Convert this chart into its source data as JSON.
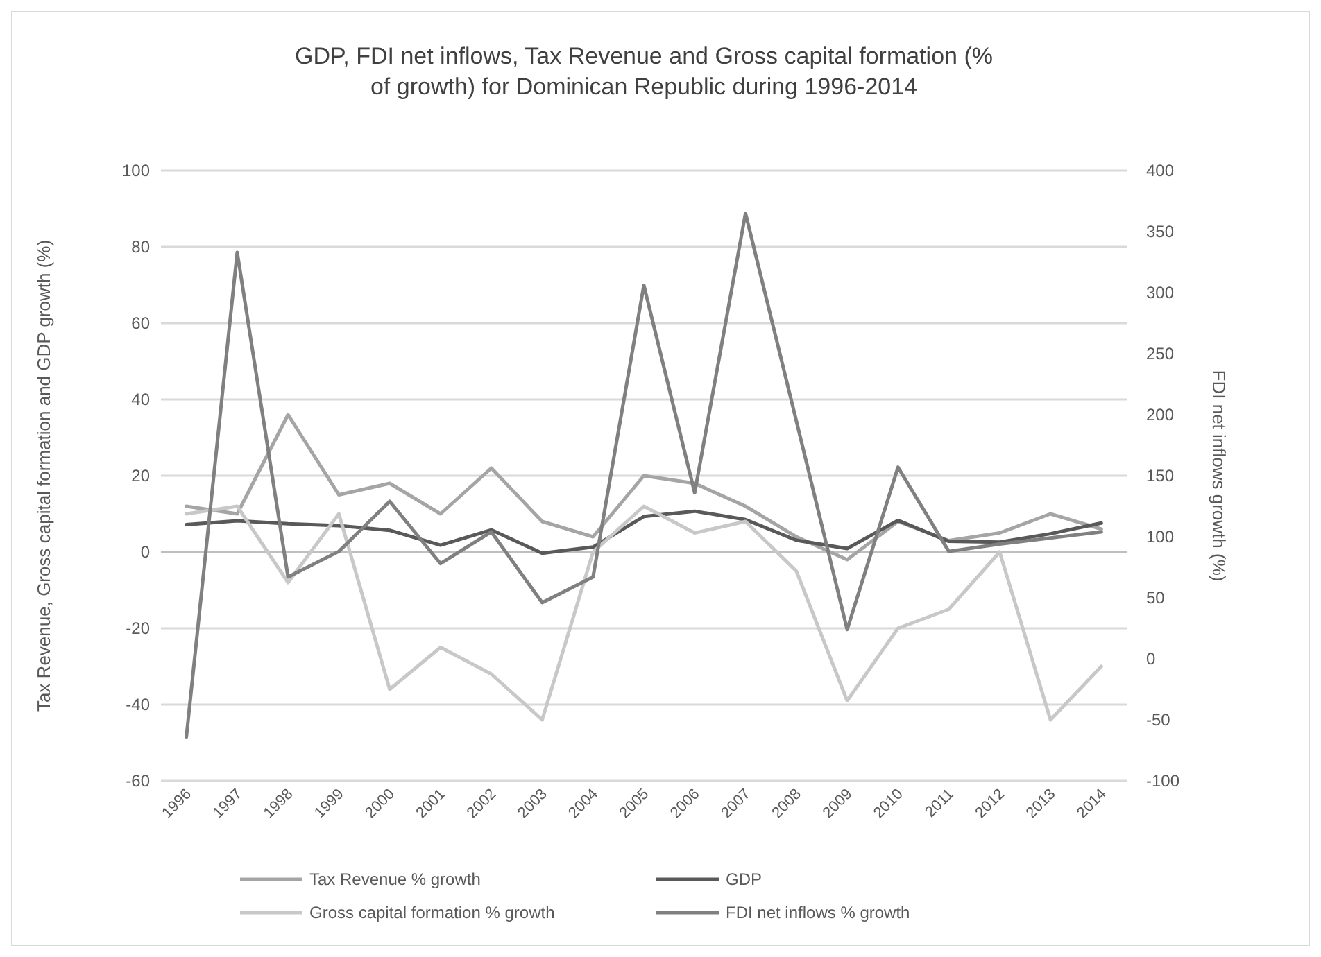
{
  "chart_data": {
    "type": "line",
    "title": "GDP, FDI net inflows, Tax Revenue and Gross capital formation (% of growth) for Dominican Republic during 1996-2014",
    "categories": [
      "1996",
      "1997",
      "1998",
      "1999",
      "2000",
      "2001",
      "2002",
      "2003",
      "2004",
      "2005",
      "2006",
      "2007",
      "2008",
      "2009",
      "2010",
      "2011",
      "2012",
      "2013",
      "2014"
    ],
    "series": [
      {
        "name": "Tax Revenue % growth",
        "color": "#a5a5a5",
        "values": [
          12,
          10,
          36,
          15,
          18,
          10,
          22,
          8,
          4,
          20,
          18,
          12,
          4,
          -2,
          8,
          3,
          5,
          10,
          6
        ]
      },
      {
        "name": "GDP",
        "color": "#595959",
        "values": [
          7.2,
          8.2,
          7.4,
          6.9,
          5.7,
          1.8,
          5.8,
          -0.3,
          1.3,
          9.3,
          10.7,
          8.5,
          3.1,
          0.9,
          8.3,
          2.8,
          2.6,
          4.8,
          7.6
        ]
      },
      {
        "name": "Gross capital formation % growth",
        "color": "#c8c8c8",
        "values": [
          10,
          12,
          -8,
          10,
          -36,
          -25,
          -32,
          -44,
          0,
          12,
          5,
          8,
          -5,
          -39,
          -20,
          -15,
          0,
          -44,
          -30
        ]
      },
      {
        "name": "FDI net inflows % growth",
        "color": "#808080",
        "axis": "y2",
        "values": [
          -64,
          333,
          67,
          88,
          129,
          78,
          104,
          46,
          67,
          306,
          136,
          365,
          195,
          24,
          157,
          88,
          94,
          99,
          104
        ]
      }
    ],
    "ylabel": "Tax Revenue, Gross capital formation and GDP growth (%)",
    "y2label": "FDI net inflows growth (%)",
    "ylim": [
      -60,
      100
    ],
    "yticks": [
      -60,
      -40,
      -20,
      0,
      20,
      40,
      60,
      80,
      100
    ],
    "y2lim": [
      -100,
      400
    ],
    "y2ticks": [
      -100,
      -50,
      0,
      50,
      100,
      150,
      200,
      250,
      300,
      350,
      400
    ],
    "grid": "y",
    "legend": "bottom"
  }
}
